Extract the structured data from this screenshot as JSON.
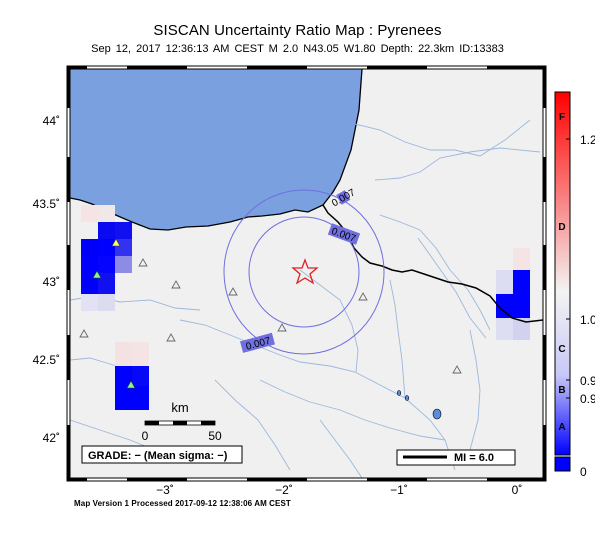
{
  "header": {
    "title": "SISCAN Uncertainty Ratio Map : Pyrenees",
    "subtitle": "Sep 12, 2017 12:36:13 AM CEST   M 2.0   N43.05 W1.80   Depth: 22.3km   ID:13383"
  },
  "axes": {
    "lat_labels": [
      "44˚",
      "43.5˚",
      "43˚",
      "42.5˚",
      "42˚"
    ],
    "lon_labels": [
      "−3˚",
      "−2˚",
      "−1˚",
      "0˚"
    ]
  },
  "contours": [
    "0.007",
    "0.007",
    "0.007"
  ],
  "scale_bar": {
    "unit": "km",
    "start": "0",
    "end": "50"
  },
  "grade_box": "GRADE: − (Mean sigma: −)",
  "mi_legend": "MI = 6.0",
  "colorbar": {
    "letters": [
      "F",
      "D",
      "C",
      "B",
      "A"
    ],
    "values": [
      "1.2",
      "1.0",
      "0.9",
      "0.9",
      "0"
    ],
    "colors": {
      "top": "#ff0000",
      "middle": "#f3f3f3",
      "bottom": "#0000ff"
    }
  },
  "footer": "Map Version 1 Processed 2017-09-12 12:38:06 AM CEST",
  "colors": {
    "sea": "#7aa0e0",
    "land": "#f0f0f0",
    "rivers": "#9bb8dc",
    "border": "#000000",
    "contour": "#6f6fe0",
    "epicenter": "#e02020",
    "station": "#80ff80"
  }
}
